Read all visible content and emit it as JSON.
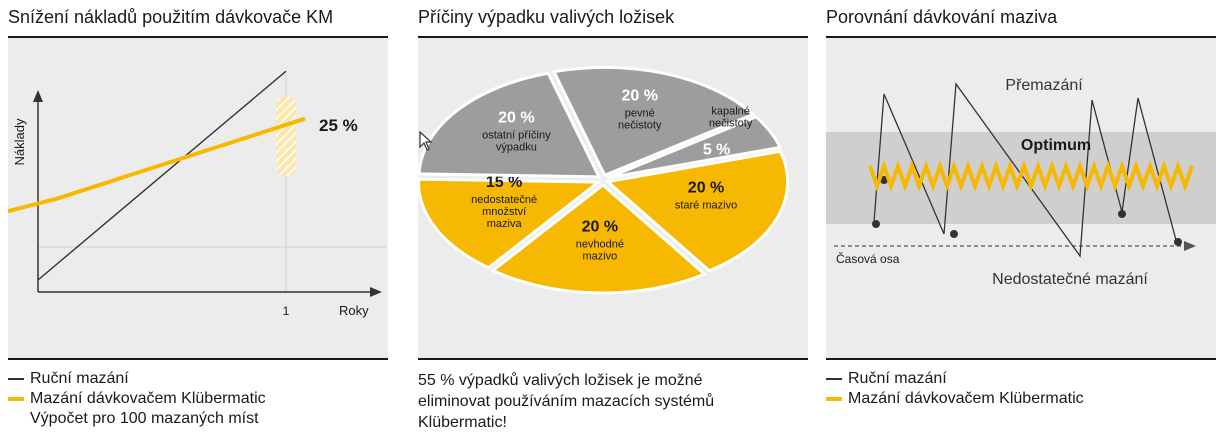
{
  "panels": [
    {
      "title": "Snížení nákladů použitím dávkovače KM",
      "legend": [
        "Ruční mazání",
        "Mazání dávkovačem Klübermatic"
      ],
      "note": "Výpočet pro 100 mazaných míst"
    },
    {
      "title": "Příčiny výpadku valivých ložisek",
      "caption_lines": [
        "55 % výpadků valivých ložisek je možné",
        "eliminovat používáním mazacích systémů",
        "Klübermatic!"
      ]
    },
    {
      "title": "Porovnání dávkování maziva",
      "legend": [
        "Ruční mazání",
        "Mazání dávkovačem Klübermatic"
      ]
    }
  ],
  "chart_data": [
    {
      "type": "line",
      "xlabel": "Roky",
      "ylabel": "Náklady",
      "x_ticks": [
        "1"
      ],
      "annotation": "25 %",
      "series": [
        {
          "name": "Ruční mazání",
          "points": [
            [
              0,
              0.05
            ],
            [
              1.0,
              0.92
            ]
          ]
        },
        {
          "name": "Mazání dávkovačem Klübermatic",
          "points": [
            [
              -0.26,
              0.3
            ],
            [
              0.08,
              0.39
            ],
            [
              1.07,
              0.72
            ]
          ]
        }
      ],
      "colors": {
        "manual": "#333333",
        "dispenser": "#f6b800"
      }
    },
    {
      "type": "pie",
      "slices": [
        {
          "pct": "20 %",
          "label": "pevné\nnečistoty",
          "value": 20,
          "color": "#9d9d9d"
        },
        {
          "pct": "5 %",
          "label": "kapalné\nnečistoty",
          "value": 5,
          "color": "#9d9d9d"
        },
        {
          "pct": "20 %",
          "label": "staré mazivo",
          "value": 20,
          "color": "#f6b800"
        },
        {
          "pct": "20 %",
          "label": "nevhodné\nmazivo",
          "value": 20,
          "color": "#f6b800"
        },
        {
          "pct": "15 %",
          "label": "nedostatečné\nmnožství\nmaziva",
          "value": 15,
          "color": "#f6b800"
        },
        {
          "pct": "20 %",
          "label": "ostatní příčiny\nvýpadku",
          "value": 20,
          "color": "#9d9d9d"
        }
      ]
    },
    {
      "type": "line",
      "labels": {
        "over": "Přemazání",
        "optimum": "Optimum",
        "axis": "Časová osa",
        "under": "Nedostatečné mazání"
      }
    }
  ]
}
